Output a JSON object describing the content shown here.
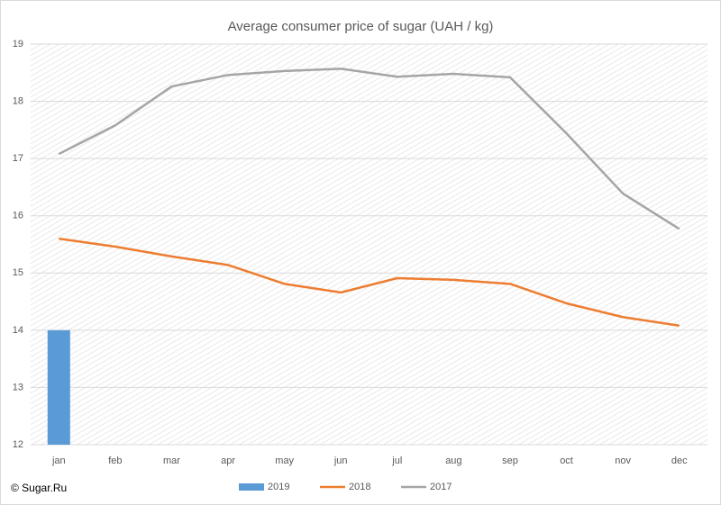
{
  "chart_data": {
    "type": "combo",
    "title": "Average consumer price of sugar (UAH / kg)",
    "source": "© Sugar.Ru",
    "categories": [
      "jan",
      "feb",
      "mar",
      "apr",
      "may",
      "jun",
      "jul",
      "aug",
      "sep",
      "oct",
      "nov",
      "dec"
    ],
    "series": [
      {
        "name": "2019",
        "type": "bar",
        "color": "#5b9bd5",
        "values": [
          14.0,
          null,
          null,
          null,
          null,
          null,
          null,
          null,
          null,
          null,
          null,
          null
        ]
      },
      {
        "name": "2018",
        "type": "line",
        "color": "#ed7d31",
        "values": [
          15.6,
          15.46,
          15.29,
          15.14,
          14.81,
          14.66,
          14.91,
          14.88,
          14.81,
          14.47,
          14.23,
          14.08
        ]
      },
      {
        "name": "2017",
        "type": "line",
        "color": "#a5a5a5",
        "values": [
          17.08,
          17.58,
          18.26,
          18.46,
          18.53,
          18.57,
          18.43,
          18.48,
          18.42,
          17.44,
          16.39,
          15.77
        ]
      }
    ],
    "ylim": [
      12,
      19
    ],
    "yticks": [
      12,
      13,
      14,
      15,
      16,
      17,
      18,
      19
    ],
    "grid": true,
    "legend": "bottom"
  }
}
